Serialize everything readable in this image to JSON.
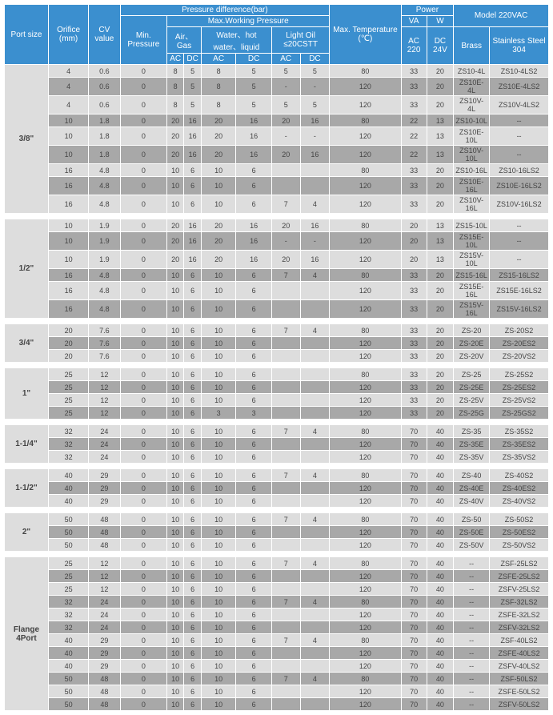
{
  "hdr": {
    "portSize": "Port size",
    "orifice": "Orifice (mm)",
    "cv": "CV value",
    "presDiff": "Pressure difference(bar)",
    "min": "Min. Pressure",
    "maxWork": "Max.Working Pressure",
    "air": "Air、Gas",
    "water": "Water、hot water、liquid",
    "oil": "Light Oil ≤20CSTT",
    "ac": "AC",
    "dc": "DC",
    "maxTemp": "Max. Temperature (℃)",
    "power": "Power",
    "va": "VA",
    "w": "W",
    "ac220": "AC 220",
    "dc24": "DC 24V",
    "model": "Model 220VAC",
    "brass": "Brass",
    "ss": "Stainless Steel 304"
  },
  "groups": [
    {
      "lbl": "3/8\"",
      "rows": [
        [
          "4",
          "0.6",
          "0",
          "8",
          "5",
          "8",
          "5",
          "5",
          "5",
          "80",
          "33",
          "20",
          "ZS10-4L",
          "ZS10-4LS2",
          0
        ],
        [
          "4",
          "0.6",
          "0",
          "8",
          "5",
          "8",
          "5",
          "-",
          "-",
          "120",
          "33",
          "20",
          "ZS10E-4L",
          "ZS10E-4LS2",
          1
        ],
        [
          "4",
          "0.6",
          "0",
          "8",
          "5",
          "8",
          "5",
          "5",
          "5",
          "120",
          "33",
          "20",
          "ZS10V-4L",
          "ZS10V-4LS2",
          0
        ],
        [
          "10",
          "1.8",
          "0",
          "20",
          "16",
          "20",
          "16",
          "20",
          "16",
          "80",
          "22",
          "13",
          "ZS10-10L",
          "--",
          1
        ],
        [
          "10",
          "1.8",
          "0",
          "20",
          "16",
          "20",
          "16",
          "-",
          "-",
          "120",
          "22",
          "13",
          "ZS10E-10L",
          "--",
          0
        ],
        [
          "10",
          "1.8",
          "0",
          "20",
          "16",
          "20",
          "16",
          "20",
          "16",
          "120",
          "22",
          "13",
          "ZS10V-10L",
          "--",
          1
        ],
        [
          "16",
          "4.8",
          "0",
          "10",
          "6",
          "10",
          "6",
          "",
          "",
          "80",
          "33",
          "20",
          "ZS10-16L",
          "ZS10-16LS2",
          0
        ],
        [
          "16",
          "4.8",
          "0",
          "10",
          "6",
          "10",
          "6",
          "",
          "",
          "120",
          "33",
          "20",
          "ZS10E-16L",
          "ZS10E-16LS2",
          1
        ],
        [
          "16",
          "4.8",
          "0",
          "10",
          "6",
          "10",
          "6",
          "7",
          "4",
          "120",
          "33",
          "20",
          "ZS10V-16L",
          "ZS10V-16LS2",
          0
        ]
      ]
    },
    {
      "lbl": "1/2\"",
      "rows": [
        [
          "10",
          "1.9",
          "0",
          "20",
          "16",
          "20",
          "16",
          "20",
          "16",
          "80",
          "20",
          "13",
          "ZS15-10L",
          "--",
          0
        ],
        [
          "10",
          "1.9",
          "0",
          "20",
          "16",
          "20",
          "16",
          "-",
          "-",
          "120",
          "20",
          "13",
          "ZS15E-10L",
          "--",
          1
        ],
        [
          "10",
          "1.9",
          "0",
          "20",
          "16",
          "20",
          "16",
          "20",
          "16",
          "120",
          "20",
          "13",
          "ZS15V-10L",
          "--",
          0
        ],
        [
          "16",
          "4.8",
          "0",
          "10",
          "6",
          "10",
          "6",
          "7",
          "4",
          "80",
          "33",
          "20",
          "ZS15-16L",
          "ZS15-16LS2",
          1
        ],
        [
          "16",
          "4.8",
          "0",
          "10",
          "6",
          "10",
          "6",
          "",
          "",
          "120",
          "33",
          "20",
          "ZS15E-16L",
          "ZS15E-16LS2",
          0
        ],
        [
          "16",
          "4.8",
          "0",
          "10",
          "6",
          "10",
          "6",
          "",
          "",
          "120",
          "33",
          "20",
          "ZS15V-16L",
          "ZS15V-16LS2",
          1
        ]
      ]
    },
    {
      "lbl": "3/4\"",
      "rows": [
        [
          "20",
          "7.6",
          "0",
          "10",
          "6",
          "10",
          "6",
          "7",
          "4",
          "80",
          "33",
          "20",
          "ZS-20",
          "ZS-20S2",
          0
        ],
        [
          "20",
          "7.6",
          "0",
          "10",
          "6",
          "10",
          "6",
          "",
          "",
          "120",
          "33",
          "20",
          "ZS-20E",
          "ZS-20ES2",
          1
        ],
        [
          "20",
          "7.6",
          "0",
          "10",
          "6",
          "10",
          "6",
          "",
          "",
          "120",
          "33",
          "20",
          "ZS-20V",
          "ZS-20VS2",
          0
        ]
      ]
    },
    {
      "lbl": "1\"",
      "rows": [
        [
          "25",
          "12",
          "0",
          "10",
          "6",
          "10",
          "6",
          "",
          "",
          "80",
          "33",
          "20",
          "ZS-25",
          "ZS-25S2",
          0
        ],
        [
          "25",
          "12",
          "0",
          "10",
          "6",
          "10",
          "6",
          "",
          "",
          "120",
          "33",
          "20",
          "ZS-25E",
          "ZS-25ES2",
          1
        ],
        [
          "25",
          "12",
          "0",
          "10",
          "6",
          "10",
          "6",
          "",
          "",
          "120",
          "33",
          "20",
          "ZS-25V",
          "ZS-25VS2",
          0
        ],
        [
          "25",
          "12",
          "0",
          "10",
          "6",
          "3",
          "3",
          "",
          "",
          "120",
          "33",
          "20",
          "ZS-25G",
          "ZS-25GS2",
          1
        ]
      ]
    },
    {
      "lbl": "1-1/4\"",
      "rows": [
        [
          "32",
          "24",
          "0",
          "10",
          "6",
          "10",
          "6",
          "7",
          "4",
          "80",
          "70",
          "40",
          "ZS-35",
          "ZS-35S2",
          0
        ],
        [
          "32",
          "24",
          "0",
          "10",
          "6",
          "10",
          "6",
          "",
          "",
          "120",
          "70",
          "40",
          "ZS-35E",
          "ZS-35ES2",
          1
        ],
        [
          "32",
          "24",
          "0",
          "10",
          "6",
          "10",
          "6",
          "",
          "",
          "120",
          "70",
          "40",
          "ZS-35V",
          "ZS-35VS2",
          0
        ]
      ]
    },
    {
      "lbl": "1-1/2\"",
      "rows": [
        [
          "40",
          "29",
          "0",
          "10",
          "6",
          "10",
          "6",
          "7",
          "4",
          "80",
          "70",
          "40",
          "ZS-40",
          "ZS-40S2",
          0
        ],
        [
          "40",
          "29",
          "0",
          "10",
          "6",
          "10",
          "6",
          "",
          "",
          "120",
          "70",
          "40",
          "ZS-40E",
          "ZS-40ES2",
          1
        ],
        [
          "40",
          "29",
          "0",
          "10",
          "6",
          "10",
          "6",
          "",
          "",
          "120",
          "70",
          "40",
          "ZS-40V",
          "ZS-40VS2",
          0
        ]
      ]
    },
    {
      "lbl": "2\"",
      "rows": [
        [
          "50",
          "48",
          "0",
          "10",
          "6",
          "10",
          "6",
          "7",
          "4",
          "80",
          "70",
          "40",
          "ZS-50",
          "ZS-50S2",
          0
        ],
        [
          "50",
          "48",
          "0",
          "10",
          "6",
          "10",
          "6",
          "",
          "",
          "120",
          "70",
          "40",
          "ZS-50E",
          "ZS-50ES2",
          1
        ],
        [
          "50",
          "48",
          "0",
          "10",
          "6",
          "10",
          "6",
          "",
          "",
          "120",
          "70",
          "40",
          "ZS-50V",
          "ZS-50VS2",
          0
        ]
      ]
    },
    {
      "lbl": "Flange 4Port",
      "rows": [
        [
          "25",
          "12",
          "0",
          "10",
          "6",
          "10",
          "6",
          "7",
          "4",
          "80",
          "70",
          "40",
          "--",
          "ZSF-25LS2",
          0
        ],
        [
          "25",
          "12",
          "0",
          "10",
          "6",
          "10",
          "6",
          "",
          "",
          "120",
          "70",
          "40",
          "--",
          "ZSFE-25LS2",
          1
        ],
        [
          "25",
          "12",
          "0",
          "10",
          "6",
          "10",
          "6",
          "",
          "",
          "120",
          "70",
          "40",
          "--",
          "ZSFV-25LS2",
          0
        ],
        [
          "32",
          "24",
          "0",
          "10",
          "6",
          "10",
          "6",
          "7",
          "4",
          "80",
          "70",
          "40",
          "--",
          "ZSF-32LS2",
          1
        ],
        [
          "32",
          "24",
          "0",
          "10",
          "6",
          "10",
          "6",
          "",
          "",
          "120",
          "70",
          "40",
          "--",
          "ZSFE-32LS2",
          0
        ],
        [
          "32",
          "24",
          "0",
          "10",
          "6",
          "10",
          "6",
          "",
          "",
          "120",
          "70",
          "40",
          "--",
          "ZSFV-32LS2",
          1
        ],
        [
          "40",
          "29",
          "0",
          "10",
          "6",
          "10",
          "6",
          "7",
          "4",
          "80",
          "70",
          "40",
          "--",
          "ZSF-40LS2",
          0
        ],
        [
          "40",
          "29",
          "0",
          "10",
          "6",
          "10",
          "6",
          "",
          "",
          "120",
          "70",
          "40",
          "--",
          "ZSFE-40LS2",
          1
        ],
        [
          "40",
          "29",
          "0",
          "10",
          "6",
          "10",
          "6",
          "",
          "",
          "120",
          "70",
          "40",
          "--",
          "ZSFV-40LS2",
          0
        ],
        [
          "50",
          "48",
          "0",
          "10",
          "6",
          "10",
          "6",
          "7",
          "4",
          "80",
          "70",
          "40",
          "--",
          "ZSF-50LS2",
          1
        ],
        [
          "50",
          "48",
          "0",
          "10",
          "6",
          "10",
          "6",
          "",
          "",
          "120",
          "70",
          "40",
          "--",
          "ZSFE-50LS2",
          0
        ],
        [
          "50",
          "48",
          "0",
          "10",
          "6",
          "10",
          "6",
          "",
          "",
          "120",
          "70",
          "40",
          "--",
          "ZSFV-50LS2",
          1
        ]
      ]
    }
  ]
}
